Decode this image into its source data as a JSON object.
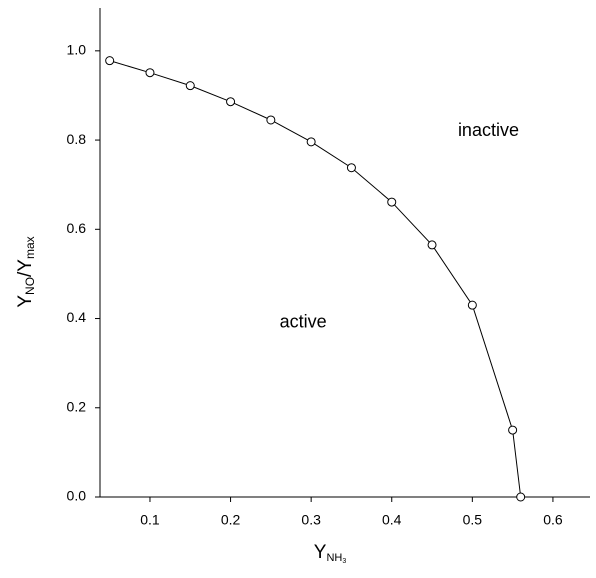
{
  "chart_data": {
    "type": "line",
    "xlabel": {
      "main": "Y",
      "sub": "NH",
      "subsub": "3"
    },
    "ylabel": {
      "main": "Y",
      "sub": "NO",
      "mid": "/Y",
      "sub2": "max"
    },
    "annotations": [
      {
        "text": "inactive",
        "x": 0.52,
        "y": 0.82
      },
      {
        "text": "active",
        "x": 0.29,
        "y": 0.39
      }
    ],
    "x": [
      0.05,
      0.1,
      0.15,
      0.2,
      0.25,
      0.3,
      0.35,
      0.4,
      0.45,
      0.5,
      0.55,
      0.56
    ],
    "series": [
      {
        "color": "#000000",
        "values": [
          0.978,
          0.951,
          0.922,
          0.886,
          0.845,
          0.796,
          0.738,
          0.661,
          0.565,
          0.43,
          0.15,
          0
        ]
      }
    ],
    "xlim": [
      0.038,
      0.646
    ],
    "ylim": [
      0,
      1.096
    ],
    "xticks": [
      0.1,
      0.2,
      0.3,
      0.4,
      0.5,
      0.6
    ],
    "yticks": [
      {
        "value": 0,
        "label": "0.0"
      },
      0.2,
      0.4,
      0.6,
      0.8,
      {
        "value": 1,
        "label": "1.0"
      }
    ]
  }
}
